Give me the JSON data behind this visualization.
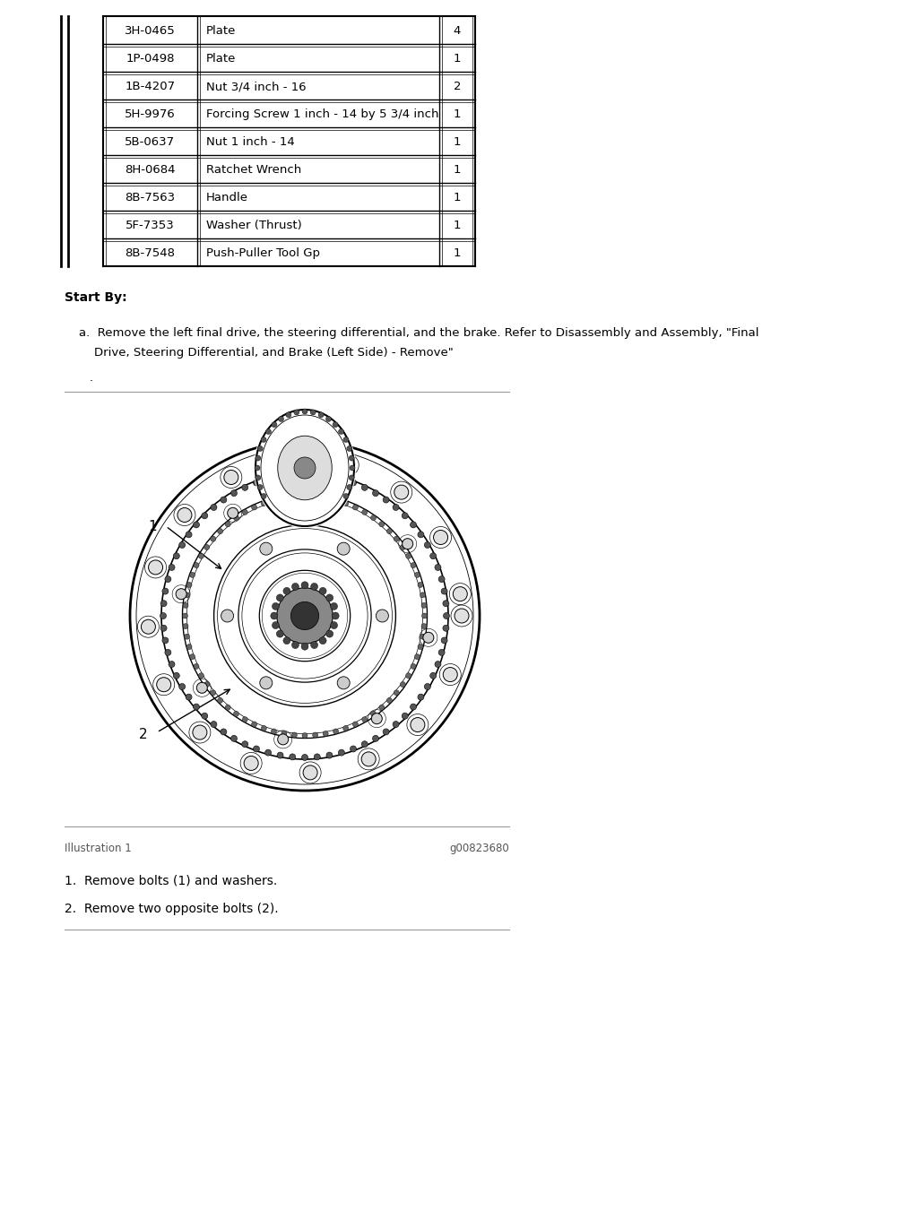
{
  "table_rows": [
    [
      "3H-0465",
      "Plate",
      "4"
    ],
    [
      "1P-0498",
      "Plate",
      "1"
    ],
    [
      "1B-4207",
      "Nut 3/4 inch - 16",
      "2"
    ],
    [
      "5H-9976",
      "Forcing Screw 1 inch - 14 by 5 3/4 inch",
      "1"
    ],
    [
      "5B-0637",
      "Nut 1 inch - 14",
      "1"
    ],
    [
      "8H-0684",
      "Ratchet Wrench",
      "1"
    ],
    [
      "8B-7563",
      "Handle",
      "1"
    ],
    [
      "5F-7353",
      "Washer (Thrust)",
      "1"
    ],
    [
      "8B-7548",
      "Push-Puller Tool Gp",
      "1"
    ]
  ],
  "start_by_label": "Start By:",
  "illustration_label": "Illustration 1",
  "illustration_id": "g00823680",
  "step1_text": "1.  Remove bolts (1) and washers.",
  "step2_text": "2.  Remove two opposite bolts (2).",
  "bg_color": "#ffffff",
  "text_color": "#000000",
  "font_size_table": 9.5,
  "font_size_body": 10.0,
  "font_size_bold": 10.0
}
